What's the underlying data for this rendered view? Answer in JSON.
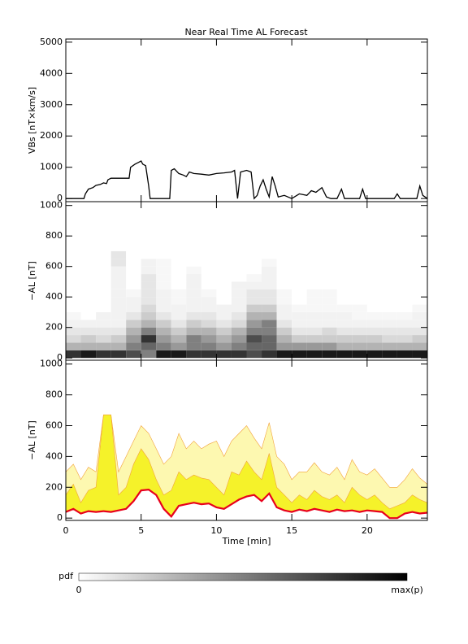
{
  "chart_data": [
    {
      "type": "line",
      "title": "Near Real Time AL Forecast",
      "y_label": "VBs [nT×km/s]",
      "color": "#000000",
      "x": [
        0,
        1.2,
        1.3,
        1.5,
        1.8,
        2,
        2.3,
        2.5,
        2.7,
        2.8,
        3,
        4.2,
        4.3,
        4.6,
        4.8,
        5,
        5.1,
        5.3,
        5.5,
        5.6,
        6.9,
        7,
        7.2,
        7.5,
        7.8,
        8,
        8.2,
        8.5,
        9,
        9.5,
        10,
        10.5,
        11,
        11.2,
        11.4,
        11.6,
        12,
        12.3,
        12.5,
        12.7,
        12.9,
        13.1,
        13.3,
        13.5,
        13.7,
        13.9,
        14.1,
        14.5,
        15,
        15.5,
        16,
        16.3,
        16.6,
        17,
        17.3,
        17.6,
        18,
        18.3,
        18.5,
        19.5,
        19.7,
        19.9,
        21.8,
        22,
        22.2,
        23.3,
        23.5,
        23.7,
        24
      ],
      "values": [
        0,
        0,
        150,
        300,
        350,
        420,
        450,
        500,
        480,
        600,
        650,
        650,
        1000,
        1100,
        1150,
        1200,
        1100,
        1050,
        400,
        0,
        0,
        900,
        950,
        800,
        750,
        700,
        850,
        800,
        780,
        750,
        800,
        820,
        850,
        900,
        0,
        850,
        900,
        850,
        0,
        100,
        400,
        600,
        300,
        50,
        700,
        400,
        50,
        100,
        0,
        150,
        100,
        250,
        200,
        350,
        50,
        0,
        0,
        300,
        0,
        0,
        300,
        0,
        0,
        150,
        0,
        0,
        400,
        100,
        0
      ],
      "xlim": [
        0,
        24
      ],
      "xticks": [
        0,
        5,
        10,
        15,
        20
      ],
      "ylim": [
        -100,
        5100
      ],
      "yticks": [
        0,
        1000,
        2000,
        3000,
        4000,
        5000
      ]
    },
    {
      "type": "heatmap",
      "y_label": "−AL [nT]",
      "x_bins": [
        0,
        1,
        2,
        3,
        4,
        5,
        6,
        7,
        8,
        9,
        10,
        11,
        12,
        13,
        14,
        15,
        16,
        17,
        18,
        19,
        20,
        21,
        22,
        23,
        24
      ],
      "y_bins": [
        0,
        50,
        100,
        150,
        200,
        250,
        300,
        350,
        400,
        450,
        500,
        550,
        600,
        650,
        700
      ],
      "z": [
        [
          0.8,
          0.3,
          0.15,
          0.1,
          0.05,
          0.03,
          0,
          0,
          0,
          0,
          0,
          0,
          0,
          0
        ],
        [
          0.9,
          0.3,
          0.2,
          0.1,
          0.05,
          0,
          0,
          0,
          0,
          0,
          0,
          0,
          0,
          0
        ],
        [
          0.8,
          0.3,
          0.15,
          0.1,
          0.05,
          0.05,
          0,
          0,
          0,
          0,
          0,
          0,
          0,
          0
        ],
        [
          0.8,
          0.3,
          0.2,
          0.1,
          0.05,
          0.05,
          0.05,
          0.05,
          0.05,
          0.05,
          0.05,
          0.05,
          0.1,
          0.1
        ],
        [
          0.7,
          0.5,
          0.4,
          0.3,
          0.2,
          0.1,
          0.05,
          0.05,
          0.03,
          0,
          0,
          0,
          0,
          0
        ],
        [
          0.5,
          0.6,
          0.8,
          0.5,
          0.3,
          0.2,
          0.15,
          0.1,
          0.1,
          0.1,
          0.1,
          0.05,
          0.05,
          0
        ],
        [
          0.9,
          0.5,
          0.4,
          0.3,
          0.2,
          0.1,
          0.05,
          0.05,
          0.05,
          0.03,
          0.03,
          0.03,
          0.03,
          0
        ],
        [
          0.9,
          0.4,
          0.3,
          0.2,
          0.1,
          0.05,
          0.05,
          0.03,
          0.03,
          0,
          0,
          0,
          0,
          0
        ],
        [
          0.8,
          0.5,
          0.5,
          0.3,
          0.2,
          0.1,
          0.05,
          0.05,
          0.05,
          0.05,
          0.05,
          0.03,
          0,
          0
        ],
        [
          0.8,
          0.5,
          0.4,
          0.3,
          0.15,
          0.1,
          0.05,
          0.05,
          0.03,
          0,
          0,
          0,
          0,
          0
        ],
        [
          0.8,
          0.4,
          0.3,
          0.2,
          0.1,
          0.05,
          0.05,
          0,
          0,
          0,
          0,
          0,
          0,
          0
        ],
        [
          0.8,
          0.5,
          0.4,
          0.3,
          0.15,
          0.1,
          0.05,
          0.05,
          0.05,
          0.05,
          0,
          0,
          0,
          0
        ],
        [
          0.7,
          0.6,
          0.7,
          0.5,
          0.4,
          0.3,
          0.2,
          0.1,
          0.1,
          0.05,
          0.03,
          0,
          0,
          0
        ],
        [
          0.8,
          0.6,
          0.6,
          0.5,
          0.5,
          0.3,
          0.2,
          0.1,
          0.1,
          0.05,
          0.05,
          0.05,
          0.03,
          0
        ],
        [
          0.9,
          0.4,
          0.3,
          0.2,
          0.1,
          0.05,
          0.05,
          0.03,
          0.03,
          0,
          0,
          0,
          0,
          0
        ],
        [
          0.9,
          0.4,
          0.2,
          0.1,
          0.05,
          0.05,
          0.03,
          0,
          0,
          0,
          0,
          0,
          0,
          0
        ],
        [
          0.9,
          0.4,
          0.2,
          0.1,
          0.05,
          0.05,
          0.03,
          0.03,
          0.03,
          0,
          0,
          0,
          0,
          0
        ],
        [
          0.9,
          0.4,
          0.2,
          0.15,
          0.05,
          0.05,
          0.03,
          0.03,
          0.03,
          0,
          0,
          0,
          0,
          0
        ],
        [
          0.9,
          0.3,
          0.2,
          0.1,
          0.05,
          0.05,
          0.03,
          0,
          0,
          0,
          0,
          0,
          0,
          0
        ],
        [
          0.9,
          0.3,
          0.2,
          0.1,
          0.05,
          0.03,
          0.03,
          0,
          0,
          0,
          0,
          0,
          0,
          0
        ],
        [
          0.9,
          0.3,
          0.2,
          0.1,
          0.05,
          0.03,
          0,
          0,
          0,
          0,
          0,
          0,
          0,
          0
        ],
        [
          0.9,
          0.3,
          0.15,
          0.1,
          0.05,
          0.03,
          0,
          0,
          0,
          0,
          0,
          0,
          0,
          0
        ],
        [
          0.9,
          0.3,
          0.15,
          0.1,
          0.05,
          0.03,
          0,
          0,
          0,
          0,
          0,
          0,
          0,
          0
        ],
        [
          0.9,
          0.3,
          0.2,
          0.1,
          0.05,
          0.05,
          0.03,
          0,
          0,
          0,
          0,
          0,
          0,
          0
        ]
      ],
      "zlim": [
        0,
        1
      ],
      "colorbar": {
        "label": "pdf",
        "ticks": [
          0,
          {
            "value": 1,
            "label": "max(p)"
          }
        ]
      },
      "xlim": [
        0,
        24
      ],
      "xticks": [
        0,
        5,
        10,
        15,
        20
      ],
      "ylim": [
        -15,
        1025
      ],
      "yticks": [
        0,
        200,
        400,
        600,
        800,
        1000
      ]
    },
    {
      "type": "band",
      "y_label": "−AL [nT]",
      "x_label": "Time [min]",
      "x": [
        0,
        0.5,
        1,
        1.5,
        2,
        2.5,
        3,
        3.5,
        4,
        4.5,
        5,
        5.5,
        6,
        6.5,
        7,
        7.5,
        8,
        8.5,
        9,
        9.5,
        10,
        10.5,
        11,
        11.5,
        12,
        12.5,
        13,
        13.5,
        14,
        14.5,
        15,
        15.5,
        16,
        16.5,
        17,
        17.5,
        18,
        18.5,
        19,
        19.5,
        20,
        20.5,
        21,
        21.5,
        22,
        22.5,
        23,
        23.5,
        24
      ],
      "series": [
        {
          "color": "#e8001c",
          "values": [
            40,
            60,
            30,
            45,
            40,
            45,
            40,
            50,
            60,
            110,
            180,
            185,
            150,
            60,
            10,
            80,
            90,
            100,
            90,
            95,
            70,
            60,
            90,
            120,
            140,
            150,
            110,
            160,
            70,
            50,
            40,
            55,
            45,
            60,
            50,
            40,
            55,
            45,
            50,
            40,
            50,
            45,
            40,
            0,
            0,
            30,
            40,
            30,
            35
          ]
        },
        {
          "color": "#f5f22a",
          "values": [
            150,
            220,
            100,
            180,
            200,
            670,
            670,
            150,
            200,
            350,
            450,
            380,
            250,
            150,
            180,
            300,
            250,
            280,
            260,
            250,
            200,
            150,
            300,
            280,
            370,
            300,
            250,
            420,
            200,
            150,
            100,
            150,
            120,
            180,
            140,
            120,
            150,
            100,
            200,
            150,
            120,
            150,
            100,
            60,
            80,
            100,
            150,
            120,
            100
          ]
        },
        {
          "color": "#fdf8b0",
          "values": [
            300,
            350,
            250,
            330,
            300,
            670,
            670,
            300,
            400,
            500,
            600,
            550,
            450,
            350,
            400,
            550,
            450,
            500,
            450,
            480,
            500,
            400,
            500,
            550,
            600,
            520,
            450,
            620,
            400,
            350,
            250,
            300,
            300,
            360,
            300,
            280,
            330,
            250,
            380,
            300,
            280,
            320,
            260,
            200,
            200,
            250,
            320,
            260,
            220
          ]
        }
      ],
      "xlim": [
        0,
        24
      ],
      "xticks": [
        0,
        5,
        10,
        15,
        20
      ],
      "ylim": [
        -15,
        1025
      ],
      "yticks": [
        0,
        200,
        400,
        600,
        800,
        1000
      ]
    }
  ]
}
